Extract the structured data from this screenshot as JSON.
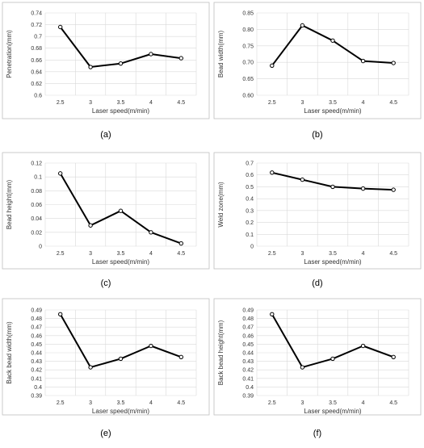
{
  "chart_data": [
    {
      "type": "line",
      "panel_label": "(a)",
      "xlabel": "Laser speed(m/min)",
      "ylabel": "Penetration(mm)",
      "x": [
        "2.5",
        "3",
        "3.5",
        "4",
        "4.5"
      ],
      "values": [
        0.716,
        0.648,
        0.654,
        0.67,
        0.663
      ],
      "ylim": [
        0.6,
        0.74
      ],
      "yticks": [
        "0.6",
        "0.62",
        "0.64",
        "0.66",
        "0.68",
        "0.7",
        "0.72",
        "0.74"
      ],
      "grid": true
    },
    {
      "type": "line",
      "panel_label": "(b)",
      "xlabel": "Laser speed(m/min)",
      "ylabel": "Bead width(mm)",
      "x": [
        "2.5",
        "3",
        "3.5",
        "4",
        "4.5"
      ],
      "values": [
        0.69,
        0.812,
        0.766,
        0.704,
        0.698
      ],
      "ylim": [
        0.6,
        0.85
      ],
      "yticks": [
        "0.60",
        "0.65",
        "0.70",
        "0.75",
        "0.80",
        "0.85"
      ],
      "grid": true
    },
    {
      "type": "line",
      "panel_label": "(c)",
      "xlabel": "Laser speed(m/min)",
      "ylabel": "Bead height(mm)",
      "x": [
        "2.5",
        "3",
        "3.5",
        "4",
        "4.5"
      ],
      "values": [
        0.105,
        0.03,
        0.051,
        0.02,
        0.004
      ],
      "ylim": [
        0,
        0.12
      ],
      "yticks": [
        "0",
        "0.02",
        "0.04",
        "0.06",
        "0.08",
        "0.1",
        "0.12"
      ],
      "grid": true
    },
    {
      "type": "line",
      "panel_label": "(d)",
      "xlabel": "Laser speed(m/min)",
      "ylabel": "Weld zone(mm)",
      "x": [
        "2.5",
        "3",
        "3.5",
        "4",
        "4.5"
      ],
      "values": [
        0.62,
        0.56,
        0.5,
        0.485,
        0.475
      ],
      "ylim": [
        0,
        0.7
      ],
      "yticks": [
        "0",
        "0.1",
        "0.2",
        "0.3",
        "0.4",
        "0.5",
        "0.6",
        "0.7"
      ],
      "grid": true
    },
    {
      "type": "line",
      "panel_label": "(e)",
      "xlabel": "Laser speed(m/min)",
      "ylabel": "Back bead width(mm)",
      "x": [
        "2.5",
        "3",
        "3.5",
        "4",
        "4.5"
      ],
      "values": [
        0.485,
        0.423,
        0.433,
        0.448,
        0.435
      ],
      "ylim": [
        0.39,
        0.49
      ],
      "yticks": [
        "0.39",
        "0.4",
        "0.41",
        "0.42",
        "0.43",
        "0.44",
        "0.45",
        "0.46",
        "0.47",
        "0.48",
        "0.49"
      ],
      "grid": true
    },
    {
      "type": "line",
      "panel_label": "(f)",
      "xlabel": "Laser speed(m/min)",
      "ylabel": "Back bead height(mm)",
      "x": [
        "2.5",
        "3",
        "3.5",
        "4",
        "4.5"
      ],
      "values": [
        0.485,
        0.423,
        0.433,
        0.448,
        0.435
      ],
      "ylim": [
        0.39,
        0.49
      ],
      "yticks": [
        "0.39",
        "0.4",
        "0.41",
        "0.42",
        "0.43",
        "0.44",
        "0.45",
        "0.46",
        "0.47",
        "0.48",
        "0.49"
      ],
      "grid": true
    }
  ]
}
